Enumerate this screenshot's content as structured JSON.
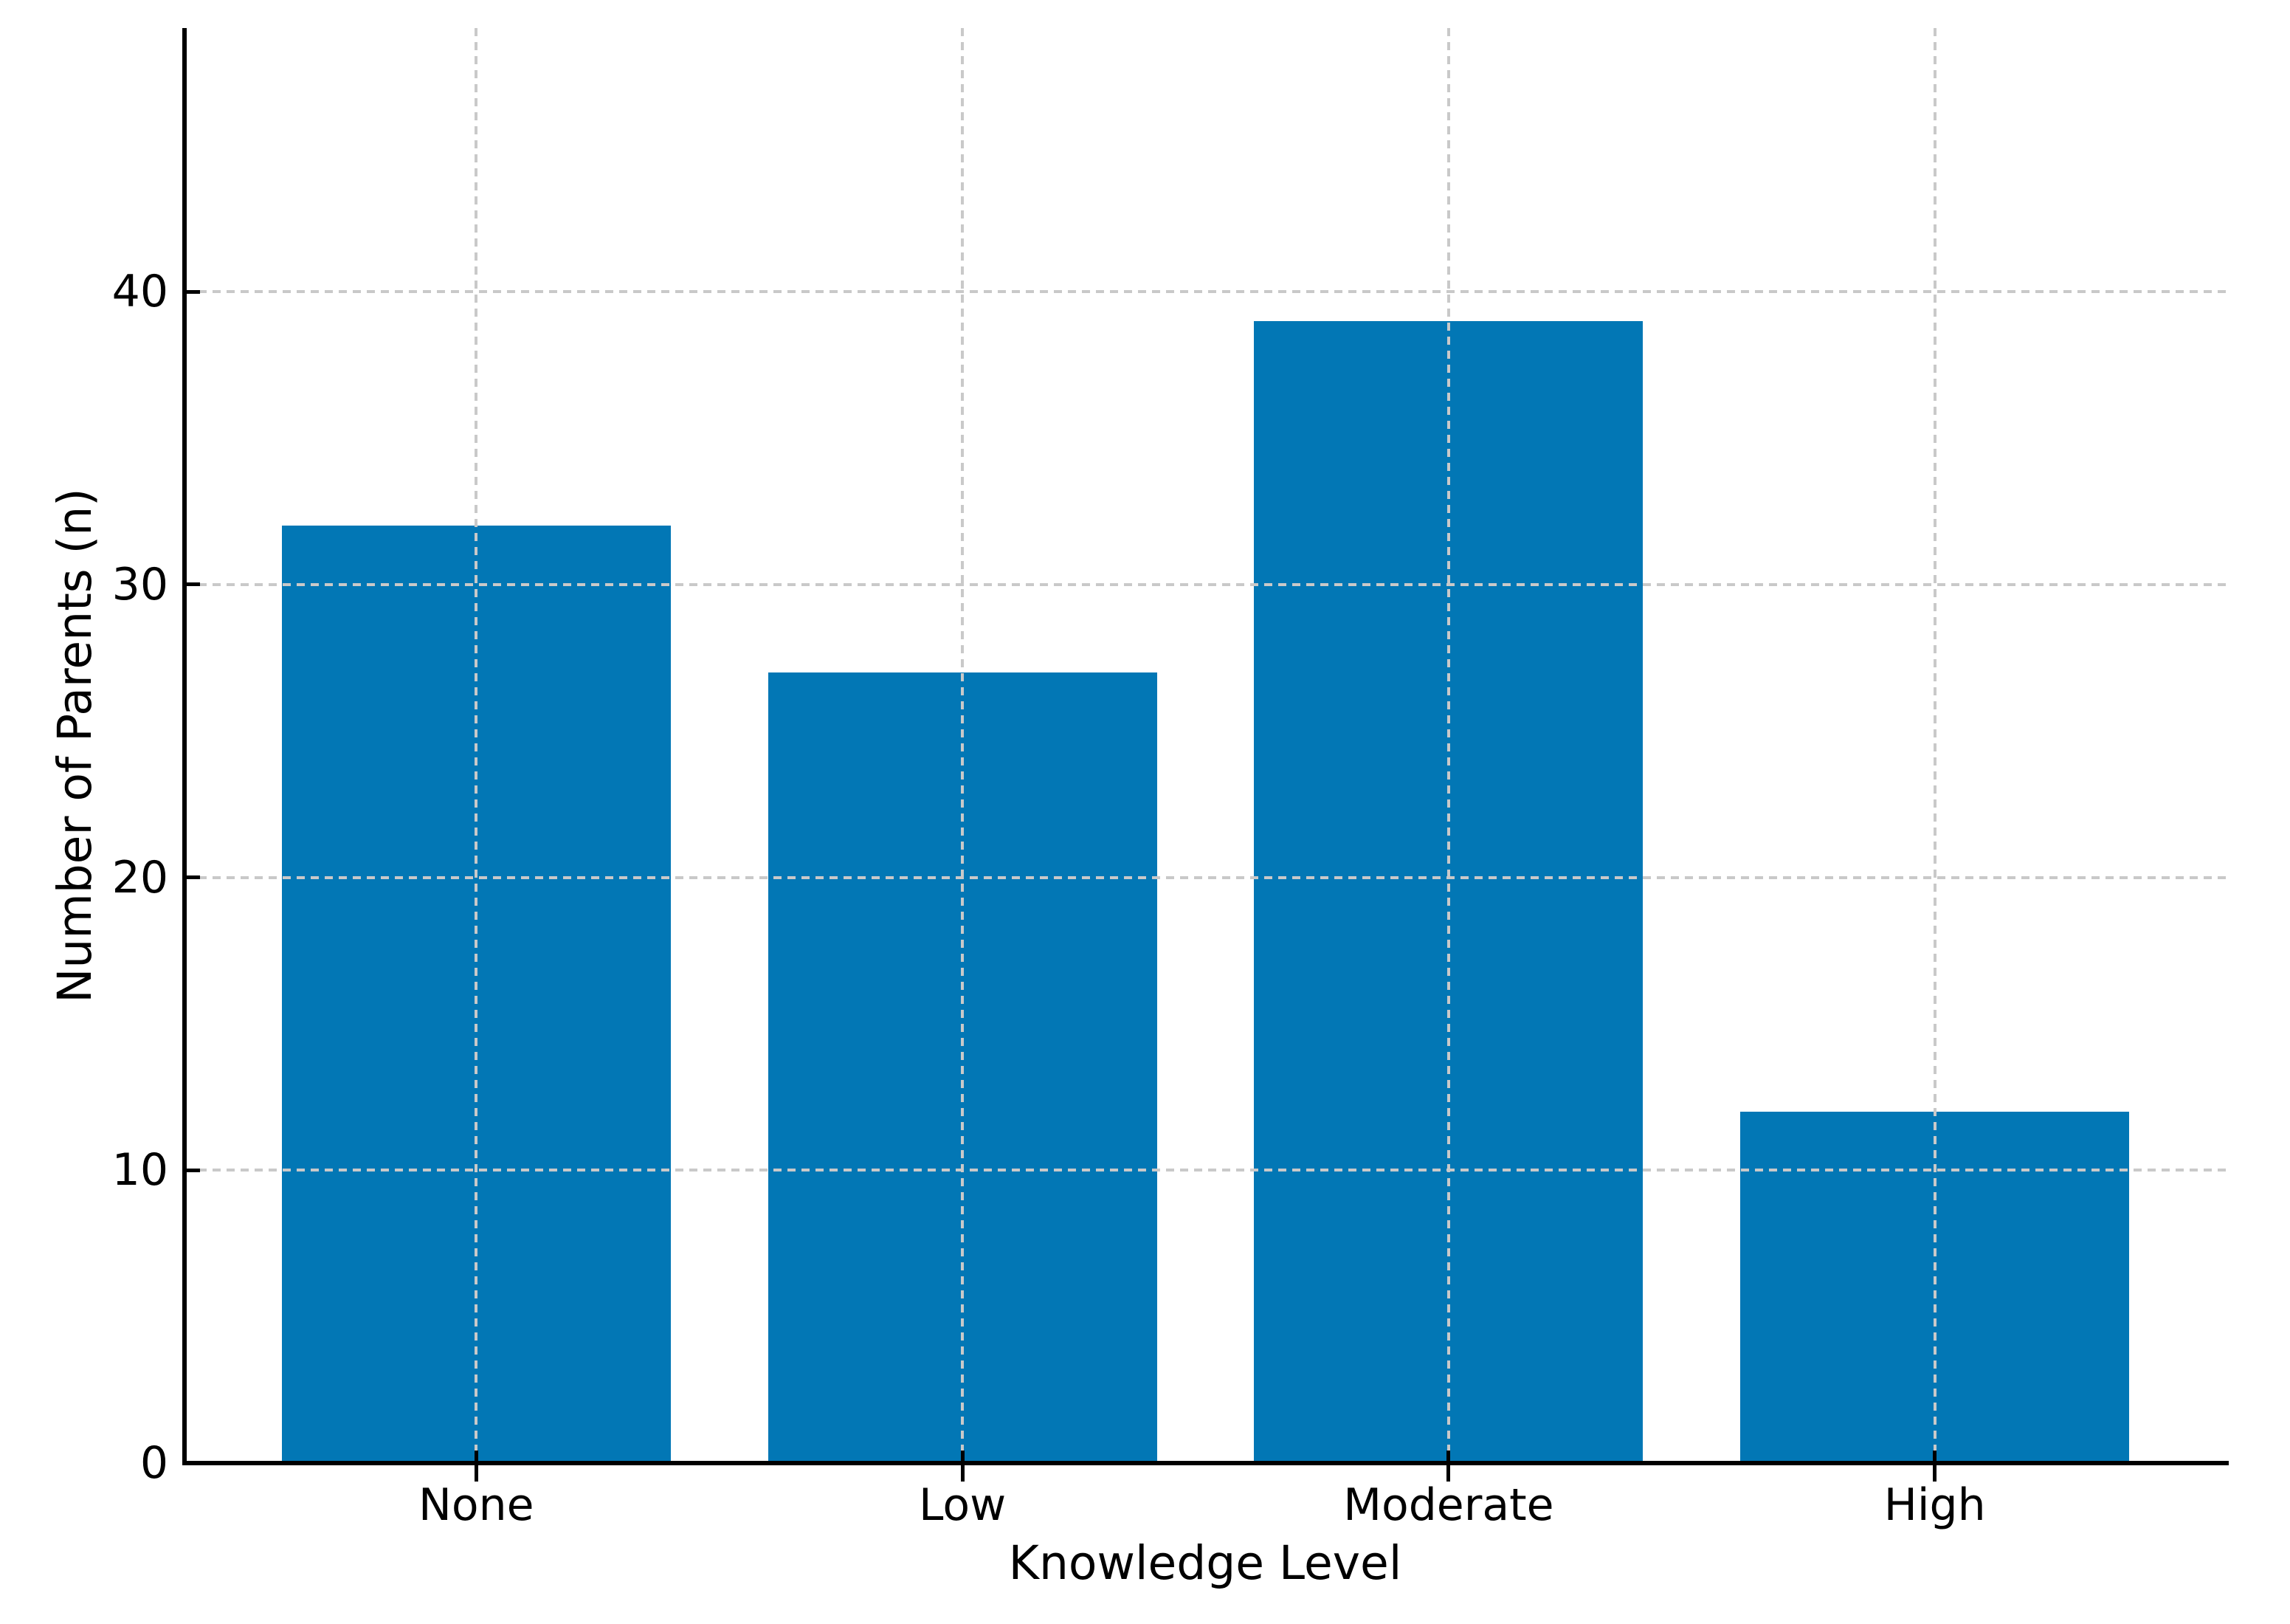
{
  "chart_data": {
    "type": "bar",
    "categories": [
      "None",
      "Low",
      "Moderate",
      "High"
    ],
    "values": [
      32,
      27,
      39,
      12
    ],
    "title": "",
    "xlabel": "Knowledge Level",
    "ylabel": "Number of Parents (n)",
    "yticks": [
      0,
      10,
      20,
      30,
      40
    ],
    "ylim": [
      0,
      49
    ],
    "xlim": [
      -0.6,
      3.6
    ],
    "bar_width_fraction": 0.8,
    "grid": {
      "visible": true,
      "axis": "both",
      "line_style": "dashed",
      "drawn_above_bars": true
    },
    "legend": {
      "visible": false
    },
    "colors": {
      "bar": "#0277B5",
      "grid": "#c9c9c9",
      "spine": "#000000",
      "text": "#000000",
      "background": "#ffffff"
    }
  }
}
